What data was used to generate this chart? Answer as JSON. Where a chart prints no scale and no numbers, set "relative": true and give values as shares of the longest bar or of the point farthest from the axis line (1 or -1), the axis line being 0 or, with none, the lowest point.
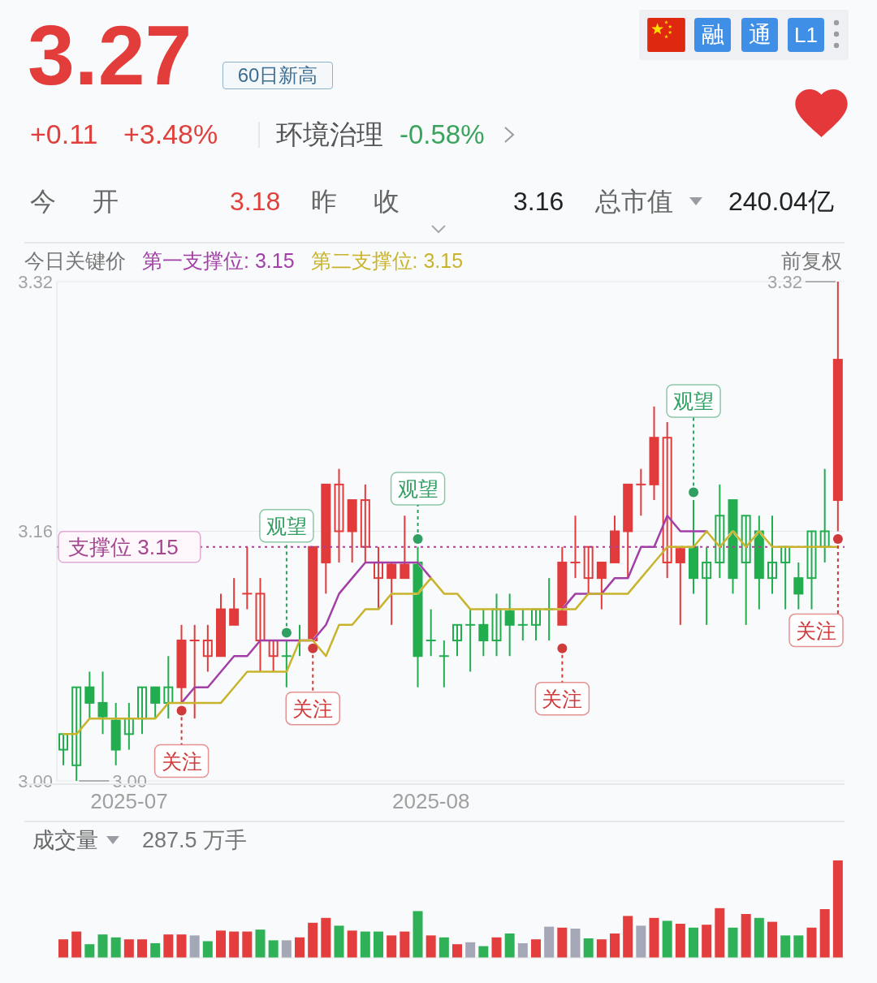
{
  "chart_data": [
    {
      "type": "other",
      "annotations": [
        "3.27",
        "60日新高",
        "融",
        "通",
        "L1",
        "+0.11",
        "+3.48%",
        "环境治理",
        "-0.58%",
        "今 开",
        "3.18",
        "昨 收",
        "3.16",
        "总市值",
        "240.04亿"
      ]
    },
    {
      "type": "candlestick",
      "legend_title": "今日关键价",
      "legend": "top left",
      "categories": [
        null,
        null,
        null,
        null,
        null,
        "2025-07",
        null,
        null,
        null,
        null,
        null,
        null,
        null,
        null,
        null,
        null,
        null,
        null,
        null,
        null,
        null,
        null,
        null,
        null,
        null,
        null,
        null,
        null,
        "2025-08",
        null,
        null,
        null,
        null,
        null,
        null,
        null,
        null,
        null,
        null,
        null,
        null,
        null,
        null,
        null,
        null,
        null,
        null,
        null,
        null,
        null,
        null,
        null,
        null,
        null,
        null,
        null,
        null,
        null,
        null,
        null
      ],
      "ohlc": [
        [
          3.03,
          3.03,
          3.01,
          3.02
        ],
        [
          3.06,
          3.06,
          3.0,
          3.01
        ],
        [
          3.05,
          3.07,
          3.04,
          3.06
        ],
        [
          3.04,
          3.07,
          3.03,
          3.05
        ],
        [
          3.02,
          3.05,
          3.01,
          3.04
        ],
        [
          3.04,
          3.05,
          3.02,
          3.03
        ],
        [
          3.06,
          3.06,
          3.03,
          3.04
        ],
        [
          3.05,
          3.06,
          3.04,
          3.06
        ],
        [
          3.06,
          3.08,
          3.04,
          3.05
        ],
        [
          3.06,
          3.1,
          3.05,
          3.09
        ],
        [
          3.09,
          3.1,
          3.04,
          3.09
        ],
        [
          3.09,
          3.1,
          3.07,
          3.08
        ],
        [
          3.08,
          3.12,
          3.08,
          3.11
        ],
        [
          3.1,
          3.13,
          3.1,
          3.11
        ],
        [
          3.12,
          3.15,
          3.11,
          3.12
        ],
        [
          3.12,
          3.13,
          3.07,
          3.09
        ],
        [
          3.09,
          3.09,
          3.07,
          3.08
        ],
        [
          3.08,
          3.09,
          3.06,
          3.08
        ],
        [
          3.09,
          3.1,
          3.08,
          3.09
        ],
        [
          3.09,
          3.15,
          3.09,
          3.15
        ],
        [
          3.14,
          3.19,
          3.12,
          3.19
        ],
        [
          3.19,
          3.2,
          3.14,
          3.16
        ],
        [
          3.16,
          3.18,
          3.14,
          3.18
        ],
        [
          3.18,
          3.19,
          3.14,
          3.15
        ],
        [
          3.14,
          3.15,
          3.11,
          3.13
        ],
        [
          3.13,
          3.14,
          3.1,
          3.14
        ],
        [
          3.13,
          3.17,
          3.13,
          3.14
        ],
        [
          3.08,
          3.15,
          3.06,
          3.14
        ],
        [
          3.09,
          3.11,
          3.08,
          3.09
        ],
        [
          3.08,
          3.09,
          3.06,
          3.08
        ],
        [
          3.1,
          3.1,
          3.08,
          3.09
        ],
        [
          3.1,
          3.11,
          3.07,
          3.1
        ],
        [
          3.09,
          3.11,
          3.08,
          3.1
        ],
        [
          3.11,
          3.12,
          3.08,
          3.09
        ],
        [
          3.1,
          3.12,
          3.08,
          3.11
        ],
        [
          3.1,
          3.11,
          3.09,
          3.1
        ],
        [
          3.11,
          3.11,
          3.09,
          3.1
        ],
        [
          3.11,
          3.13,
          3.09,
          3.11
        ],
        [
          3.1,
          3.15,
          3.1,
          3.14
        ],
        [
          3.14,
          3.17,
          3.13,
          3.14
        ],
        [
          3.15,
          3.15,
          3.12,
          3.13
        ],
        [
          3.13,
          3.14,
          3.11,
          3.14
        ],
        [
          3.14,
          3.17,
          3.14,
          3.16
        ],
        [
          3.16,
          3.19,
          3.13,
          3.19
        ],
        [
          3.19,
          3.2,
          3.17,
          3.19
        ],
        [
          3.19,
          3.24,
          3.18,
          3.22
        ],
        [
          3.22,
          3.23,
          3.13,
          3.14
        ],
        [
          3.14,
          3.15,
          3.1,
          3.15
        ],
        [
          3.13,
          3.18,
          3.12,
          3.15
        ],
        [
          3.14,
          3.15,
          3.1,
          3.13
        ],
        [
          3.17,
          3.19,
          3.13,
          3.14
        ],
        [
          3.13,
          3.18,
          3.12,
          3.18
        ],
        [
          3.17,
          3.17,
          3.1,
          3.14
        ],
        [
          3.13,
          3.17,
          3.11,
          3.16
        ],
        [
          3.14,
          3.17,
          3.12,
          3.13
        ],
        [
          3.15,
          3.15,
          3.11,
          3.14
        ],
        [
          3.12,
          3.14,
          3.11,
          3.13
        ],
        [
          3.16,
          3.16,
          3.11,
          3.13
        ],
        [
          3.16,
          3.2,
          3.14,
          3.15
        ],
        [
          3.18,
          3.32,
          3.16,
          3.27
        ]
      ],
      "colors": [
        "#22ad4f",
        "#22ad4f",
        "#22ad4f",
        "#22ad4f",
        "#22ad4f",
        "#22ad4f",
        "#22ad4f",
        "#22ad4f",
        "#22ad4f",
        "#e23b3b",
        "#e23b3b",
        "#e23b3b",
        "#e23b3b",
        "#e23b3b",
        "#e23b3b",
        "#e23b3b",
        "#e23b3b",
        "#22ad4f",
        "#22ad4f",
        "#e23b3b",
        "#e23b3b",
        "#e23b3b",
        "#e23b3b",
        "#e23b3b",
        "#e23b3b",
        "#e23b3b",
        "#e23b3b",
        "#22ad4f",
        "#22ad4f",
        "#22ad4f",
        "#22ad4f",
        "#22ad4f",
        "#22ad4f",
        "#22ad4f",
        "#22ad4f",
        "#22ad4f",
        "#22ad4f",
        "#22ad4f",
        "#e23b3b",
        "#e23b3b",
        "#e23b3b",
        "#e23b3b",
        "#e23b3b",
        "#e23b3b",
        "#e23b3b",
        "#e23b3b",
        "#e23b3b",
        "#e23b3b",
        "#22ad4f",
        "#22ad4f",
        "#22ad4f",
        "#22ad4f",
        "#22ad4f",
        "#22ad4f",
        "#22ad4f",
        "#22ad4f",
        "#22ad4f",
        "#22ad4f",
        "#22ad4f",
        "#e23b3b"
      ],
      "series": [
        {
          "name": "第一支撑位: 3.15",
          "type": "line",
          "color": "#a13fa6",
          "values": [
            null,
            null,
            null,
            null,
            null,
            null,
            null,
            null,
            null,
            3.05,
            3.06,
            3.06,
            3.07,
            3.08,
            3.08,
            3.09,
            3.09,
            3.09,
            3.09,
            3.09,
            3.1,
            3.12,
            3.13,
            3.14,
            3.14,
            3.14,
            3.14,
            3.14,
            3.13,
            null,
            null,
            null,
            null,
            null,
            null,
            null,
            null,
            null,
            3.11,
            3.12,
            3.12,
            3.12,
            3.13,
            3.13,
            3.15,
            3.15,
            3.17,
            3.16,
            3.16,
            3.16,
            null,
            null,
            null,
            null,
            null,
            null,
            null,
            null,
            null,
            null
          ]
        },
        {
          "name": "第二支撑位: 3.15",
          "type": "line",
          "color": "#c8b42c",
          "values": [
            3.03,
            3.03,
            3.04,
            3.04,
            3.04,
            3.04,
            3.04,
            3.04,
            3.05,
            3.05,
            3.05,
            3.05,
            3.05,
            3.06,
            3.07,
            3.07,
            3.07,
            3.07,
            3.09,
            3.09,
            3.08,
            3.1,
            3.1,
            3.11,
            3.11,
            3.12,
            3.12,
            3.12,
            3.13,
            3.12,
            3.12,
            3.11,
            3.11,
            3.11,
            3.11,
            3.11,
            3.11,
            3.11,
            3.11,
            3.11,
            3.12,
            3.12,
            3.12,
            3.12,
            3.13,
            3.14,
            3.15,
            3.15,
            3.15,
            3.16,
            3.15,
            3.16,
            3.15,
            3.16,
            3.15,
            3.15,
            3.15,
            3.15,
            3.15,
            3.15
          ]
        },
        {
          "type": "scatter",
          "color": "#2f9f62",
          "values": [
            null,
            null,
            null,
            null,
            null,
            null,
            null,
            null,
            null,
            null,
            null,
            null,
            null,
            null,
            null,
            null,
            null,
            3.095,
            null,
            null,
            null,
            null,
            null,
            null,
            null,
            null,
            null,
            3.155,
            null,
            null,
            null,
            null,
            null,
            null,
            null,
            null,
            null,
            null,
            null,
            null,
            null,
            null,
            null,
            null,
            null,
            null,
            null,
            null,
            3.185,
            null,
            null,
            null,
            null,
            null,
            null,
            null,
            null,
            null,
            null,
            null
          ],
          "value_labels": [
            null,
            null,
            null,
            null,
            null,
            null,
            null,
            null,
            null,
            null,
            null,
            null,
            null,
            null,
            null,
            null,
            null,
            "观望",
            null,
            null,
            null,
            null,
            null,
            null,
            null,
            null,
            null,
            "观望",
            null,
            null,
            null,
            null,
            null,
            null,
            null,
            null,
            null,
            null,
            null,
            null,
            null,
            null,
            null,
            null,
            null,
            null,
            null,
            null,
            "观望",
            null,
            null,
            null,
            null,
            null,
            null,
            null,
            null,
            null,
            null,
            null
          ]
        },
        {
          "type": "scatter",
          "color": "#cf3a3a",
          "values": [
            null,
            null,
            null,
            null,
            null,
            null,
            null,
            null,
            null,
            3.045,
            null,
            null,
            null,
            null,
            null,
            null,
            null,
            null,
            null,
            3.085,
            null,
            null,
            null,
            null,
            null,
            null,
            null,
            null,
            null,
            null,
            null,
            null,
            null,
            null,
            null,
            null,
            null,
            null,
            3.085,
            null,
            null,
            null,
            null,
            null,
            null,
            null,
            null,
            null,
            null,
            null,
            null,
            null,
            null,
            null,
            null,
            null,
            null,
            null,
            null,
            3.155
          ],
          "value_labels": [
            null,
            null,
            null,
            null,
            null,
            null,
            null,
            null,
            null,
            "关注",
            null,
            null,
            null,
            null,
            null,
            null,
            null,
            null,
            null,
            "关注",
            null,
            null,
            null,
            null,
            null,
            null,
            null,
            null,
            null,
            null,
            null,
            null,
            null,
            null,
            null,
            null,
            null,
            null,
            "关注",
            null,
            null,
            null,
            null,
            null,
            null,
            null,
            null,
            null,
            null,
            null,
            null,
            null,
            null,
            null,
            null,
            null,
            null,
            null,
            null,
            "关注"
          ]
        }
      ],
      "ylim": [
        3.0,
        3.32
      ],
      "yticks": [
        {
          "value": 3.0,
          "label": "3.00"
        },
        3.16,
        3.32
      ],
      "grid": "y",
      "ref_lines": [
        {
          "axis": "y",
          "value": 3.15,
          "label": "支撑位 3.15",
          "color": "#a3458f",
          "line_style": "dotted"
        }
      ],
      "annotations": [
        "3.32",
        "3.00",
        "前复权"
      ]
    },
    {
      "type": "bar",
      "title": "成交量",
      "annotations": [
        "287.5 万手"
      ],
      "relative": true,
      "categories": [
        null,
        null,
        null,
        null,
        null,
        null,
        null,
        null,
        null,
        null,
        null,
        null,
        null,
        null,
        null,
        null,
        null,
        null,
        null,
        null,
        null,
        null,
        null,
        null,
        null,
        null,
        null,
        null,
        null,
        null,
        null,
        null,
        null,
        null,
        null,
        null,
        null,
        null,
        null,
        null,
        null,
        null,
        null,
        null,
        null,
        null,
        null,
        null,
        null,
        null,
        null,
        null,
        null,
        null,
        null,
        null,
        null,
        null,
        null,
        null
      ],
      "values": [
        0.19,
        0.27,
        0.14,
        0.24,
        0.21,
        0.19,
        0.19,
        0.15,
        0.24,
        0.24,
        0.23,
        0.17,
        0.28,
        0.27,
        0.27,
        0.29,
        0.18,
        0.18,
        0.21,
        0.36,
        0.41,
        0.33,
        0.28,
        0.27,
        0.27,
        0.23,
        0.27,
        0.48,
        0.23,
        0.21,
        0.14,
        0.16,
        0.12,
        0.21,
        0.25,
        0.15,
        0.19,
        0.32,
        0.31,
        0.3,
        0.2,
        0.19,
        0.25,
        0.43,
        0.33,
        0.41,
        0.38,
        0.35,
        0.31,
        0.34,
        0.51,
        0.31,
        0.45,
        0.41,
        0.37,
        0.23,
        0.23,
        0.31,
        0.5,
        1
      ],
      "colors": [
        "#e33d3d",
        "#e33d3d",
        "#2fb257",
        "#2fb257",
        "#2fb257",
        "#e33d3d",
        "#e33d3d",
        "#2fb257",
        "#e33d3d",
        "#e33d3d",
        "#a4a7b5",
        "#2fb257",
        "#e33d3d",
        "#e33d3d",
        "#e33d3d",
        "#2fb257",
        "#2fb257",
        "#a4a7b5",
        "#e33d3d",
        "#e33d3d",
        "#e33d3d",
        "#2fb257",
        "#e33d3d",
        "#2fb257",
        "#2fb257",
        "#e33d3d",
        "#e33d3d",
        "#2fb257",
        "#e33d3d",
        "#2fb257",
        "#e33d3d",
        "#a4a7b5",
        "#2fb257",
        "#e33d3d",
        "#2fb257",
        "#a4a7b5",
        "#e33d3d",
        "#a4a7b5",
        "#e33d3d",
        "#a4a7b5",
        "#2fb257",
        "#e33d3d",
        "#e33d3d",
        "#e33d3d",
        "#a4a7b5",
        "#e33d3d",
        "#2fb257",
        "#e33d3d",
        "#2fb257",
        "#e33d3d",
        "#e33d3d",
        "#2fb257",
        "#e33d3d",
        "#2fb257",
        "#e33d3d",
        "#2fb257",
        "#2fb257",
        "#e33d3d",
        "#e33d3d",
        "#e33d3d"
      ]
    }
  ]
}
